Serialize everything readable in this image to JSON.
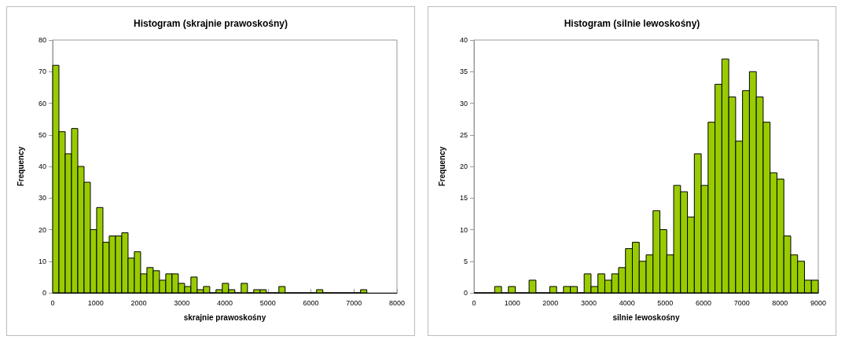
{
  "chart_data": [
    {
      "type": "histogram",
      "title": "Histogram (skrajnie prawoskośny)",
      "xlabel": "skrajnie prawoskośny",
      "ylabel": "Frequency",
      "color": "#99cc00",
      "bins": [
        0,
        146,
        292,
        438,
        584,
        730,
        876,
        1022,
        1168,
        1314,
        1460,
        1606,
        1752,
        1898,
        2044,
        2190,
        2336,
        2482,
        2628,
        2774,
        2920,
        3066,
        3212,
        3358,
        3504,
        3650,
        3796,
        3942,
        4088,
        4234,
        4380,
        4526,
        4672,
        4818,
        4964,
        5110,
        5256,
        5402,
        5548,
        5694,
        5840,
        5986,
        6132,
        6278,
        6424,
        6570,
        6716,
        6862,
        7008,
        7154,
        7300
      ],
      "values": [
        72,
        51,
        44,
        52,
        40,
        35,
        20,
        27,
        16,
        18,
        18,
        19,
        11,
        13,
        6,
        8,
        7,
        4,
        6,
        6,
        3,
        2,
        5,
        1,
        2,
        0,
        1,
        3,
        1,
        0,
        3,
        0,
        1,
        1,
        0,
        0,
        2,
        0,
        0,
        0,
        0,
        0,
        1,
        0,
        0,
        0,
        0,
        0,
        0,
        1
      ],
      "xlim": [
        0,
        8000
      ],
      "xticks": [
        0,
        1000,
        2000,
        3000,
        4000,
        5000,
        6000,
        7000,
        8000
      ],
      "ylim": [
        0,
        80
      ],
      "yticks": [
        0,
        10,
        20,
        30,
        40,
        50,
        60,
        70,
        80
      ]
    },
    {
      "type": "histogram",
      "title": "Histogram (silnie lewoskośny)",
      "xlabel": "silnie lewoskośny",
      "ylabel": "Frequency",
      "color": "#99cc00",
      "bins": [
        0,
        180,
        360,
        540,
        720,
        900,
        1080,
        1260,
        1440,
        1620,
        1800,
        1980,
        2160,
        2340,
        2520,
        2700,
        2880,
        3060,
        3240,
        3420,
        3600,
        3780,
        3960,
        4140,
        4320,
        4500,
        4680,
        4860,
        5040,
        5220,
        5400,
        5580,
        5760,
        5940,
        6120,
        6300,
        6480,
        6660,
        6840,
        7020,
        7200,
        7380,
        7560,
        7740,
        7920,
        8100,
        8280,
        8460,
        8640,
        8820,
        9000
      ],
      "values": [
        0,
        0,
        0,
        1,
        0,
        1,
        0,
        0,
        2,
        0,
        0,
        1,
        0,
        1,
        1,
        0,
        3,
        1,
        3,
        2,
        3,
        4,
        7,
        8,
        5,
        6,
        13,
        10,
        6,
        17,
        16,
        12,
        22,
        17,
        27,
        33,
        37,
        31,
        24,
        32,
        35,
        31,
        27,
        19,
        18,
        9,
        6,
        5,
        2,
        2
      ],
      "xlim": [
        0,
        9000
      ],
      "xticks": [
        0,
        1000,
        2000,
        3000,
        4000,
        5000,
        6000,
        7000,
        8000,
        9000
      ],
      "ylim": [
        0,
        40
      ],
      "yticks": [
        0,
        5,
        10,
        15,
        20,
        25,
        30,
        35,
        40
      ]
    }
  ]
}
